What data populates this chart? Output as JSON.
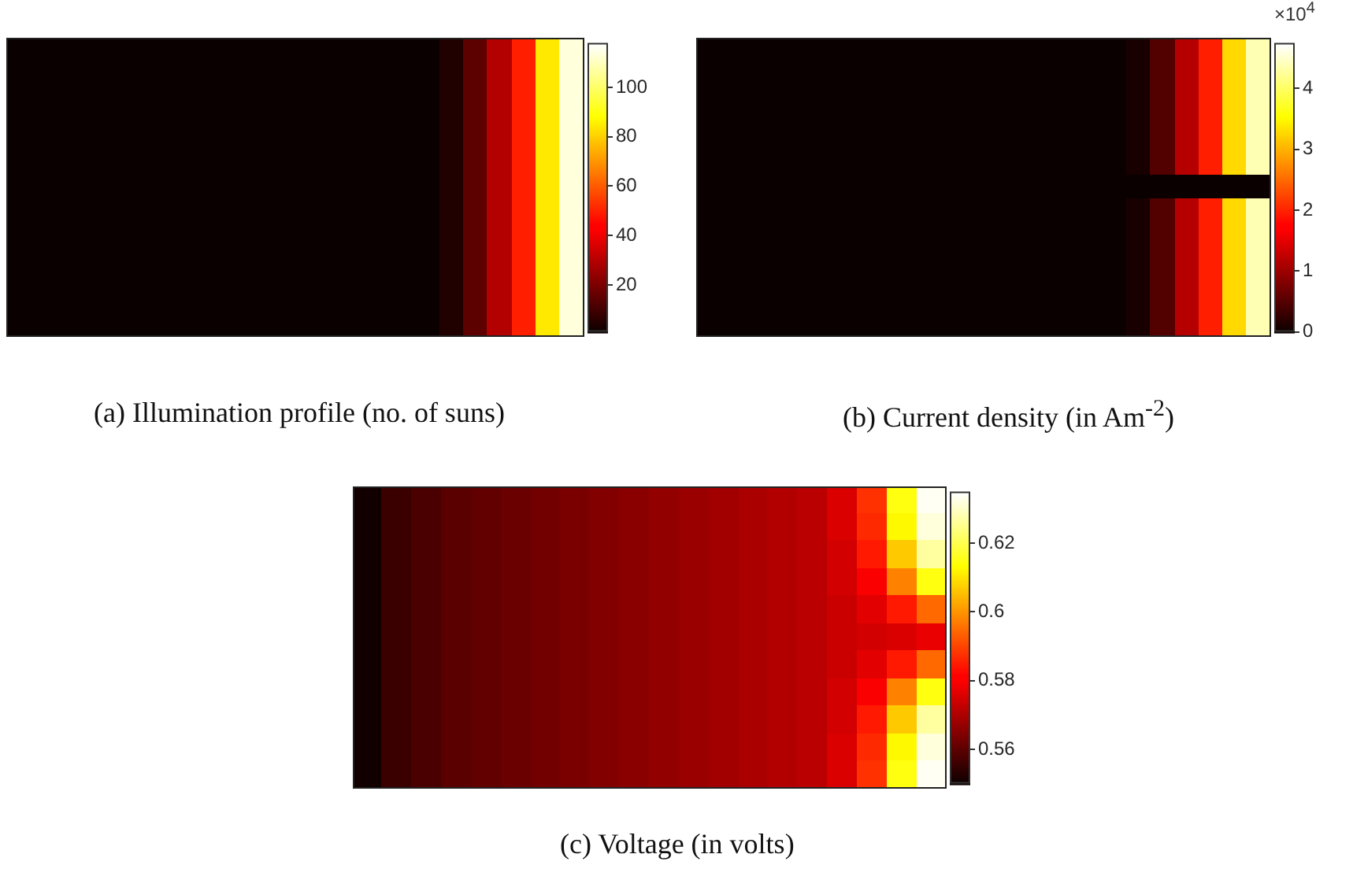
{
  "chart_data": [
    {
      "type": "heatmap",
      "title": "(a) Illumination profile (no. of suns)",
      "categories": [
        null,
        null,
        null,
        null,
        null,
        null,
        null,
        null,
        null,
        null,
        null,
        null,
        null,
        null,
        null,
        null,
        null,
        null,
        null,
        null,
        null,
        null,
        null,
        null
      ],
      "y_categories": [
        null,
        null,
        null,
        null
      ],
      "cells": [
        [
          1,
          1,
          1,
          1,
          1,
          1,
          1,
          1,
          1,
          1,
          1,
          1,
          1,
          1,
          1,
          1,
          1,
          1,
          5,
          15,
          30,
          50,
          85,
          114
        ],
        [
          1,
          1,
          1,
          1,
          1,
          1,
          1,
          1,
          1,
          1,
          1,
          1,
          1,
          1,
          1,
          1,
          1,
          1,
          5,
          15,
          30,
          50,
          85,
          114
        ],
        [
          1,
          1,
          1,
          1,
          1,
          1,
          1,
          1,
          1,
          1,
          1,
          1,
          1,
          1,
          1,
          1,
          1,
          1,
          5,
          15,
          30,
          50,
          85,
          114
        ],
        [
          1,
          1,
          1,
          1,
          1,
          1,
          1,
          1,
          1,
          1,
          1,
          1,
          1,
          1,
          1,
          1,
          1,
          1,
          5,
          15,
          30,
          50,
          85,
          114
        ]
      ],
      "clim": [
        1,
        118
      ],
      "cticks": [
        20,
        40,
        60,
        80,
        100
      ]
    },
    {
      "type": "heatmap",
      "title": "(b) Current density (in Am$^{-2}$)",
      "categories": [
        null,
        null,
        null,
        null,
        null,
        null,
        null,
        null,
        null,
        null,
        null,
        null,
        null,
        null,
        null,
        null,
        null,
        null,
        null,
        null,
        null,
        null,
        null,
        null
      ],
      "y_categories": [
        null,
        null,
        null,
        null,
        null,
        null,
        null,
        null,
        null,
        null,
        null,
        null,
        null
      ],
      "cells": [
        [
          0,
          0,
          0,
          0,
          0,
          0,
          0,
          0,
          0,
          0,
          0,
          0,
          0,
          0,
          0,
          0,
          0,
          0,
          0.1,
          0.5,
          1.2,
          2.0,
          3.3,
          4.4
        ],
        [
          0,
          0,
          0,
          0,
          0,
          0,
          0,
          0,
          0,
          0,
          0,
          0,
          0,
          0,
          0,
          0,
          0,
          0,
          0.1,
          0.5,
          1.2,
          2.0,
          3.3,
          4.4
        ],
        [
          0,
          0,
          0,
          0,
          0,
          0,
          0,
          0,
          0,
          0,
          0,
          0,
          0,
          0,
          0,
          0,
          0,
          0,
          0.1,
          0.5,
          1.2,
          2.0,
          3.3,
          4.4
        ],
        [
          0,
          0,
          0,
          0,
          0,
          0,
          0,
          0,
          0,
          0,
          0,
          0,
          0,
          0,
          0,
          0,
          0,
          0,
          0.1,
          0.5,
          1.2,
          2.0,
          3.3,
          4.4
        ],
        [
          0,
          0,
          0,
          0,
          0,
          0,
          0,
          0,
          0,
          0,
          0,
          0,
          0,
          0,
          0,
          0,
          0,
          0,
          0.1,
          0.5,
          1.2,
          2.0,
          3.3,
          4.4
        ],
        [
          0,
          0,
          0,
          0,
          0,
          0,
          0,
          0,
          0,
          0,
          0,
          0,
          0,
          0,
          0,
          0,
          0,
          0,
          0.1,
          0.5,
          1.2,
          2.0,
          3.3,
          4.4
        ],
        [
          0,
          0,
          0,
          0,
          0,
          0,
          0,
          0,
          0,
          0,
          0,
          0,
          0,
          0,
          0,
          0,
          0,
          0,
          0,
          0,
          0,
          0,
          0,
          0
        ],
        [
          0,
          0,
          0,
          0,
          0,
          0,
          0,
          0,
          0,
          0,
          0,
          0,
          0,
          0,
          0,
          0,
          0,
          0,
          0.1,
          0.5,
          1.2,
          2.0,
          3.3,
          4.4
        ],
        [
          0,
          0,
          0,
          0,
          0,
          0,
          0,
          0,
          0,
          0,
          0,
          0,
          0,
          0,
          0,
          0,
          0,
          0,
          0.1,
          0.5,
          1.2,
          2.0,
          3.3,
          4.4
        ],
        [
          0,
          0,
          0,
          0,
          0,
          0,
          0,
          0,
          0,
          0,
          0,
          0,
          0,
          0,
          0,
          0,
          0,
          0,
          0.1,
          0.5,
          1.2,
          2.0,
          3.3,
          4.4
        ],
        [
          0,
          0,
          0,
          0,
          0,
          0,
          0,
          0,
          0,
          0,
          0,
          0,
          0,
          0,
          0,
          0,
          0,
          0,
          0.1,
          0.5,
          1.2,
          2.0,
          3.3,
          4.4
        ],
        [
          0,
          0,
          0,
          0,
          0,
          0,
          0,
          0,
          0,
          0,
          0,
          0,
          0,
          0,
          0,
          0,
          0,
          0,
          0.1,
          0.5,
          1.2,
          2.0,
          3.3,
          4.4
        ],
        [
          0,
          0,
          0,
          0,
          0,
          0,
          0,
          0,
          0,
          0,
          0,
          0,
          0,
          0,
          0,
          0,
          0,
          0,
          0.1,
          0.5,
          1.2,
          2.0,
          3.3,
          4.4
        ]
      ],
      "clim": [
        0,
        4.75
      ],
      "cticks": [
        0,
        1,
        2,
        3,
        4
      ],
      "annotations": [
        "×10$^{4}$"
      ]
    },
    {
      "type": "heatmap",
      "title": "(c) Voltage (in volts)",
      "categories": [
        null,
        null,
        null,
        null,
        null,
        null,
        null,
        null,
        null,
        null,
        null,
        null,
        null,
        null,
        null,
        null,
        null,
        null,
        null,
        null
      ],
      "y_categories": [
        null,
        null,
        null,
        null,
        null,
        null,
        null,
        null,
        null,
        null,
        null
      ],
      "cells": [
        [
          0.551,
          0.556,
          0.558,
          0.56,
          0.561,
          0.562,
          0.563,
          0.564,
          0.565,
          0.566,
          0.567,
          0.568,
          0.569,
          0.57,
          0.571,
          0.572,
          0.576,
          0.588,
          0.615,
          0.634
        ],
        [
          0.551,
          0.556,
          0.558,
          0.56,
          0.561,
          0.562,
          0.563,
          0.564,
          0.565,
          0.566,
          0.567,
          0.568,
          0.569,
          0.57,
          0.571,
          0.572,
          0.576,
          0.587,
          0.613,
          0.632
        ],
        [
          0.551,
          0.556,
          0.558,
          0.56,
          0.561,
          0.562,
          0.563,
          0.564,
          0.565,
          0.566,
          0.567,
          0.568,
          0.569,
          0.57,
          0.571,
          0.572,
          0.575,
          0.585,
          0.607,
          0.627
        ],
        [
          0.551,
          0.556,
          0.558,
          0.56,
          0.561,
          0.562,
          0.563,
          0.564,
          0.565,
          0.566,
          0.567,
          0.568,
          0.569,
          0.57,
          0.571,
          0.572,
          0.575,
          0.58,
          0.598,
          0.615
        ],
        [
          0.551,
          0.556,
          0.558,
          0.56,
          0.561,
          0.562,
          0.563,
          0.564,
          0.565,
          0.566,
          0.567,
          0.568,
          0.569,
          0.57,
          0.571,
          0.572,
          0.574,
          0.577,
          0.585,
          0.595
        ],
        [
          0.551,
          0.556,
          0.558,
          0.56,
          0.561,
          0.562,
          0.563,
          0.564,
          0.565,
          0.566,
          0.567,
          0.568,
          0.569,
          0.57,
          0.571,
          0.572,
          0.574,
          0.575,
          0.576,
          0.578
        ],
        [
          0.551,
          0.556,
          0.558,
          0.56,
          0.561,
          0.562,
          0.563,
          0.564,
          0.565,
          0.566,
          0.567,
          0.568,
          0.569,
          0.57,
          0.571,
          0.572,
          0.574,
          0.577,
          0.585,
          0.595
        ],
        [
          0.551,
          0.556,
          0.558,
          0.56,
          0.561,
          0.562,
          0.563,
          0.564,
          0.565,
          0.566,
          0.567,
          0.568,
          0.569,
          0.57,
          0.571,
          0.572,
          0.575,
          0.58,
          0.598,
          0.615
        ],
        [
          0.551,
          0.556,
          0.558,
          0.56,
          0.561,
          0.562,
          0.563,
          0.564,
          0.565,
          0.566,
          0.567,
          0.568,
          0.569,
          0.57,
          0.571,
          0.572,
          0.575,
          0.585,
          0.607,
          0.627
        ],
        [
          0.551,
          0.556,
          0.558,
          0.56,
          0.561,
          0.562,
          0.563,
          0.564,
          0.565,
          0.566,
          0.567,
          0.568,
          0.569,
          0.57,
          0.571,
          0.572,
          0.576,
          0.587,
          0.613,
          0.632
        ],
        [
          0.551,
          0.556,
          0.558,
          0.56,
          0.561,
          0.562,
          0.563,
          0.564,
          0.565,
          0.566,
          0.567,
          0.568,
          0.569,
          0.57,
          0.571,
          0.572,
          0.576,
          0.588,
          0.615,
          0.634
        ]
      ],
      "clim": [
        0.55,
        0.635
      ],
      "cticks": [
        0.56,
        0.58,
        0.6,
        0.62
      ]
    }
  ]
}
